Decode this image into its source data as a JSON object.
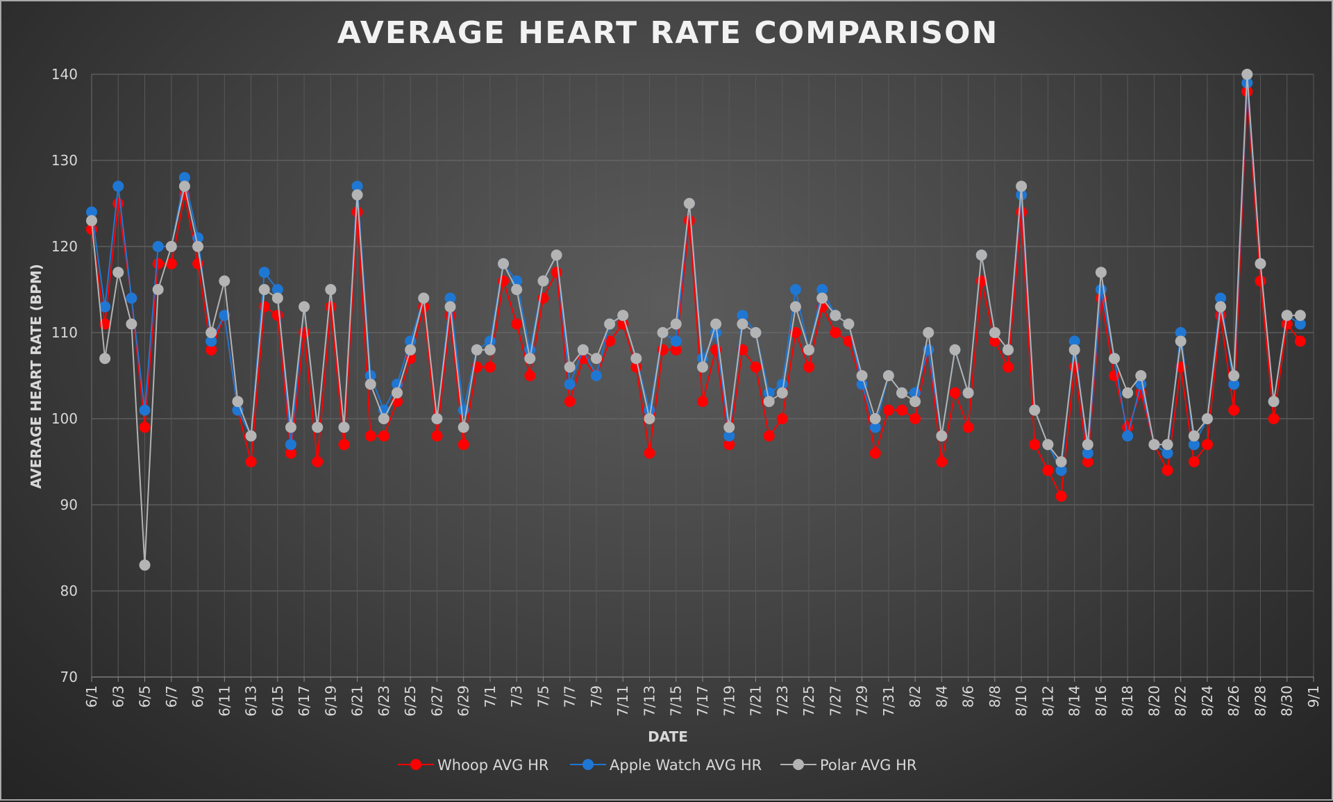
{
  "chart_data": {
    "type": "line",
    "title": "AVERAGE HEART RATE COMPARISON",
    "xlabel": "DATE",
    "ylabel": "AVERAGE HEART RATE (BPM)",
    "ylim": [
      70,
      140
    ],
    "yticks": [
      70,
      80,
      90,
      100,
      110,
      120,
      130,
      140
    ],
    "grid": true,
    "legend_position": "bottom",
    "x_tick_labels": [
      "6/1",
      "6/3",
      "6/5",
      "6/7",
      "6/9",
      "6/11",
      "6/13",
      "6/15",
      "6/17",
      "6/19",
      "6/21",
      "6/23",
      "6/25",
      "6/27",
      "6/29",
      "7/1",
      "7/3",
      "7/5",
      "7/7",
      "7/9",
      "7/11",
      "7/13",
      "7/15",
      "7/17",
      "7/19",
      "7/21",
      "7/23",
      "7/25",
      "7/27",
      "7/29",
      "7/31",
      "8/2",
      "8/4",
      "8/6",
      "8/8",
      "8/10",
      "8/12",
      "8/14",
      "8/16",
      "8/18",
      "8/20",
      "8/22",
      "8/24",
      "8/26",
      "8/28",
      "8/30",
      "9/1"
    ],
    "x": [
      "6/1",
      "6/2",
      "6/3",
      "6/4",
      "6/5",
      "6/6",
      "6/7",
      "6/8",
      "6/9",
      "6/10",
      "6/11",
      "6/12",
      "6/13",
      "6/14",
      "6/15",
      "6/16",
      "6/17",
      "6/18",
      "6/19",
      "6/20",
      "6/21",
      "6/22",
      "6/23",
      "6/24",
      "6/25",
      "6/26",
      "6/27",
      "6/28",
      "6/29",
      "6/30",
      "7/1",
      "7/2",
      "7/3",
      "7/4",
      "7/5",
      "7/6",
      "7/7",
      "7/8",
      "7/9",
      "7/10",
      "7/11",
      "7/12",
      "7/13",
      "7/14",
      "7/15",
      "7/16",
      "7/17",
      "7/18",
      "7/19",
      "7/20",
      "7/21",
      "7/22",
      "7/23",
      "7/24",
      "7/25",
      "7/26",
      "7/27",
      "7/28",
      "7/29",
      "7/30",
      "7/31",
      "8/1",
      "8/2",
      "8/3",
      "8/4",
      "8/5",
      "8/6",
      "8/7",
      "8/8",
      "8/9",
      "8/10",
      "8/11",
      "8/12",
      "8/13",
      "8/14",
      "8/15",
      "8/16",
      "8/17",
      "8/18",
      "8/19",
      "8/20",
      "8/21",
      "8/22",
      "8/23",
      "8/24",
      "8/25",
      "8/26",
      "8/27",
      "8/28",
      "8/29",
      "8/30",
      "8/31"
    ],
    "series": [
      {
        "name": "Whoop AVG HR",
        "color": "#ff0000",
        "values": [
          122,
          111,
          125,
          114,
          99,
          118,
          118,
          126,
          118,
          108,
          112,
          101,
          95,
          113,
          112,
          96,
          110,
          95,
          113,
          97,
          124,
          98,
          98,
          102,
          107,
          113,
          98,
          112,
          97,
          106,
          106,
          116,
          111,
          105,
          114,
          117,
          102,
          107,
          105,
          109,
          111,
          106,
          96,
          108,
          108,
          123,
          102,
          108,
          97,
          108,
          106,
          98,
          100,
          110,
          106,
          113,
          110,
          109,
          104,
          96,
          101,
          101,
          100,
          108,
          95,
          103,
          99,
          116,
          109,
          106,
          124,
          97,
          94,
          91,
          106,
          95,
          114,
          105,
          99,
          103,
          97,
          94,
          106,
          95,
          97,
          112,
          101,
          138,
          116,
          100,
          111,
          109
        ]
      },
      {
        "name": "Apple Watch AVG HR",
        "color": "#1f77d4",
        "values": [
          124,
          113,
          127,
          114,
          101,
          120,
          120,
          128,
          121,
          109,
          112,
          101,
          98,
          117,
          115,
          97,
          113,
          99,
          115,
          99,
          127,
          105,
          101,
          104,
          109,
          114,
          100,
          114,
          101,
          108,
          109,
          118,
          116,
          108,
          116,
          119,
          104,
          108,
          105,
          111,
          112,
          107,
          101,
          110,
          109,
          125,
          107,
          110,
          98,
          112,
          110,
          103,
          104,
          115,
          108,
          115,
          112,
          111,
          104,
          99,
          105,
          103,
          103,
          108,
          98,
          108,
          103,
          119,
          110,
          108,
          126,
          101,
          97,
          94,
          109,
          96,
          115,
          107,
          98,
          104,
          97,
          96,
          110,
          97,
          100,
          114,
          104,
          139,
          118,
          102,
          112,
          111
        ]
      },
      {
        "name": "Polar AVG HR",
        "color": "#b4b4b4",
        "values": [
          123,
          107,
          117,
          111,
          83,
          115,
          120,
          127,
          120,
          110,
          116,
          102,
          98,
          115,
          114,
          99,
          113,
          99,
          115,
          99,
          126,
          104,
          100,
          103,
          108,
          114,
          100,
          113,
          99,
          108,
          108,
          118,
          115,
          107,
          116,
          119,
          106,
          108,
          107,
          111,
          112,
          107,
          100,
          110,
          111,
          125,
          106,
          111,
          99,
          111,
          110,
          102,
          103,
          113,
          108,
          114,
          112,
          111,
          105,
          100,
          105,
          103,
          102,
          110,
          98,
          108,
          103,
          119,
          110,
          108,
          127,
          101,
          97,
          95,
          108,
          97,
          117,
          107,
          103,
          105,
          97,
          97,
          109,
          98,
          100,
          113,
          105,
          140,
          118,
          102,
          112,
          112
        ]
      }
    ]
  }
}
